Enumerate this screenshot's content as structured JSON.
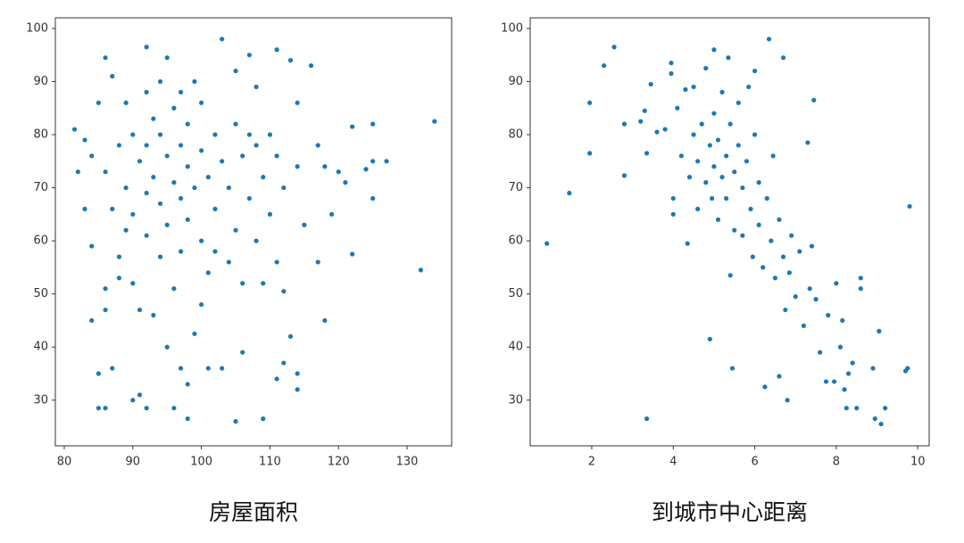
{
  "chart_data": [
    {
      "type": "scatter",
      "title": "房屋面积",
      "color": "#1f77b4",
      "x": [
        81.5,
        82,
        83,
        83,
        84,
        84,
        84,
        85,
        85,
        85,
        86,
        86,
        86,
        86,
        86,
        87,
        87,
        87,
        88,
        88,
        88,
        89,
        89,
        89,
        90,
        90,
        90,
        90,
        91,
        91,
        91,
        92,
        92,
        92,
        92,
        92,
        92,
        93,
        93,
        93,
        94,
        94,
        94,
        94,
        95,
        95,
        95,
        95,
        96,
        96,
        96,
        96,
        97,
        97,
        97,
        97,
        97,
        98,
        98,
        98,
        98,
        98,
        99,
        99,
        99,
        100,
        100,
        100,
        100,
        101,
        101,
        101,
        102,
        102,
        102,
        103,
        103,
        103,
        104,
        104,
        105,
        105,
        105,
        105,
        106,
        106,
        106,
        107,
        107,
        107,
        108,
        108,
        108,
        109,
        109,
        109,
        110,
        110,
        111,
        111,
        111,
        111,
        112,
        112,
        112,
        113,
        113,
        114,
        114,
        114,
        114,
        115,
        116,
        117,
        117,
        118,
        118,
        119,
        120,
        121,
        122,
        122,
        124,
        125,
        125,
        125,
        127,
        132,
        134
      ],
      "values": [
        81,
        73,
        66,
        79,
        76,
        59,
        45,
        86,
        35,
        28.5,
        28.5,
        94.5,
        73,
        51,
        47,
        91,
        36,
        66,
        78,
        57,
        53,
        86,
        70,
        62,
        80,
        65,
        52,
        30,
        75,
        47,
        31,
        96.5,
        88,
        78,
        69,
        61,
        28.5,
        83,
        72,
        46,
        90,
        80,
        67,
        57,
        94.5,
        76,
        63,
        40,
        85,
        71,
        51,
        28.5,
        88,
        78,
        68,
        58,
        36,
        82,
        74,
        64,
        33,
        26.5,
        90,
        70,
        42.5,
        86,
        77,
        60,
        48,
        72,
        54,
        36,
        80,
        66,
        58,
        98,
        75,
        36,
        70,
        56,
        92,
        82,
        62,
        26,
        76,
        52,
        39,
        95,
        80,
        68,
        89,
        78,
        60,
        72,
        52,
        26.5,
        80,
        65,
        96,
        76,
        56,
        34,
        70,
        50.5,
        37,
        94,
        42,
        86,
        74,
        35,
        32,
        63,
        93,
        78,
        56,
        74,
        45,
        65,
        73,
        71,
        81.5,
        57.5,
        73.5,
        82,
        68,
        75,
        75,
        54.5,
        82.5
      ],
      "xlim": [
        78.7,
        136.5
      ],
      "xticks": [
        80,
        90,
        100,
        110,
        120,
        130
      ],
      "ylim": [
        21.4,
        102
      ],
      "yticks": [
        30,
        40,
        50,
        60,
        70,
        80,
        90,
        100
      ]
    },
    {
      "type": "scatter",
      "title": "到城市中心距离",
      "color": "#1f77b4",
      "x": [
        0.9,
        1.45,
        1.95,
        1.95,
        2.3,
        2.55,
        2.8,
        2.8,
        3.2,
        3.3,
        3.35,
        3.35,
        3.45,
        3.6,
        3.8,
        3.95,
        3.95,
        4,
        4,
        4.1,
        4.2,
        4.3,
        4.35,
        4.4,
        4.5,
        4.5,
        4.6,
        4.6,
        4.7,
        4.8,
        4.8,
        4.9,
        4.9,
        4.95,
        5,
        5,
        5,
        5.1,
        5.1,
        5.2,
        5.2,
        5.3,
        5.3,
        5.35,
        5.4,
        5.4,
        5.45,
        5.5,
        5.5,
        5.6,
        5.6,
        5.7,
        5.7,
        5.8,
        5.85,
        5.9,
        5.95,
        6,
        6,
        6.1,
        6.1,
        6.2,
        6.25,
        6.3,
        6.35,
        6.4,
        6.45,
        6.5,
        6.6,
        6.6,
        6.7,
        6.7,
        6.75,
        6.8,
        6.85,
        6.9,
        7,
        7.1,
        7.2,
        7.3,
        7.35,
        7.4,
        7.45,
        7.5,
        7.6,
        7.75,
        7.8,
        7.95,
        8,
        8.1,
        8.15,
        8.2,
        8.25,
        8.3,
        8.4,
        8.5,
        8.6,
        8.6,
        8.9,
        8.95,
        9.05,
        9.1,
        9.2,
        9.7,
        9.75,
        9.8
      ],
      "values": [
        59.5,
        69,
        86,
        76.5,
        93,
        96.5,
        82,
        72.3,
        82.5,
        84.5,
        76.5,
        26.5,
        89.5,
        80.5,
        81,
        91.5,
        93.5,
        68,
        65,
        85,
        76,
        88.5,
        59.5,
        72,
        80,
        89,
        75,
        66,
        82,
        71,
        92.5,
        78,
        41.5,
        68,
        96,
        74,
        84,
        64,
        79,
        72,
        88,
        76,
        68,
        94.5,
        53.5,
        82,
        36,
        73,
        62,
        78,
        86,
        70,
        61,
        75,
        89,
        66,
        57,
        80,
        92,
        63,
        71,
        55,
        32.5,
        68,
        98,
        60,
        76,
        53,
        64,
        34.5,
        94.5,
        57,
        47,
        30,
        54,
        61,
        49.5,
        58,
        44,
        78.5,
        51,
        59,
        86.5,
        49,
        39,
        33.5,
        46,
        33.5,
        52,
        40,
        45,
        32,
        28.5,
        35,
        37,
        28.5,
        51,
        53,
        36,
        26.5,
        43,
        25.5,
        28.5,
        35.5,
        36,
        66.5
      ],
      "xlim": [
        0.49,
        10.28
      ],
      "xticks": [
        2,
        4,
        6,
        8,
        10
      ],
      "ylim": [
        21.4,
        102
      ],
      "yticks": [
        30,
        40,
        50,
        60,
        70,
        80,
        90,
        100
      ]
    }
  ]
}
